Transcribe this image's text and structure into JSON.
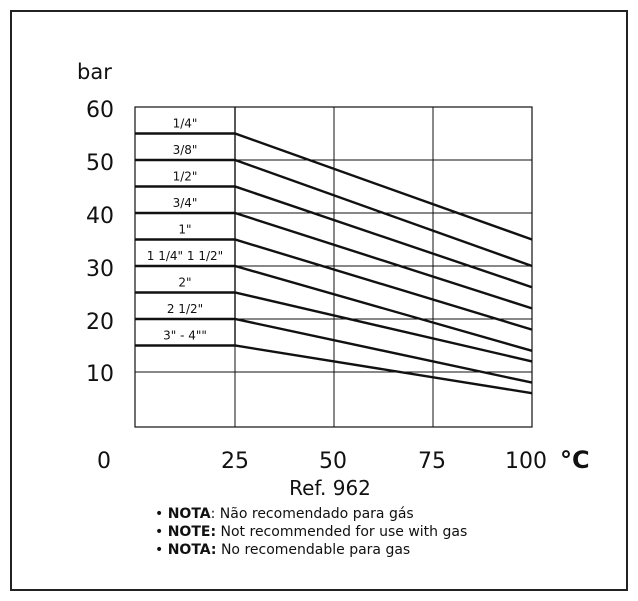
{
  "chart_data": {
    "type": "line",
    "title": "",
    "ylabel": "bar",
    "xunit": "°C",
    "caption": "Ref. 962",
    "xlim": [
      0,
      100
    ],
    "ylim": [
      0,
      60
    ],
    "y_ticks": [
      "60",
      "50",
      "40",
      "30",
      "20",
      "10"
    ],
    "x_ticks": [
      "0",
      "25",
      "50",
      "75",
      "100"
    ],
    "grid": true,
    "series": [
      {
        "name": "1/4\"",
        "x": [
          0,
          25,
          100
        ],
        "y": [
          55,
          55,
          35
        ]
      },
      {
        "name": "3/8\"",
        "x": [
          0,
          25,
          100
        ],
        "y": [
          50,
          50,
          30
        ]
      },
      {
        "name": "1/2\"",
        "x": [
          0,
          25,
          100
        ],
        "y": [
          45,
          45,
          26
        ]
      },
      {
        "name": "3/4\"",
        "x": [
          0,
          25,
          100
        ],
        "y": [
          40,
          40,
          22
        ]
      },
      {
        "name": "1\"",
        "x": [
          0,
          25,
          100
        ],
        "y": [
          35,
          35,
          18
        ]
      },
      {
        "name": "1 1/4\"  1 1/2\"",
        "x": [
          0,
          25,
          100
        ],
        "y": [
          30,
          30,
          14
        ]
      },
      {
        "name": "2\"",
        "x": [
          0,
          25,
          100
        ],
        "y": [
          25,
          25,
          12
        ]
      },
      {
        "name": "2 1/2\"",
        "x": [
          0,
          25,
          100
        ],
        "y": [
          20,
          20,
          8
        ]
      },
      {
        "name": "3\" - 4\"\"",
        "x": [
          0,
          25,
          100
        ],
        "y": [
          15,
          15,
          6
        ]
      }
    ],
    "line_color": "#111111"
  },
  "notes": [
    {
      "lead": "NOTA",
      "text": ": Não recomendado para gás"
    },
    {
      "lead": "NOTE:",
      "text": " Not recommended for use with gas"
    },
    {
      "lead": "NOTA:",
      "text": " No recomendable para gas"
    }
  ]
}
